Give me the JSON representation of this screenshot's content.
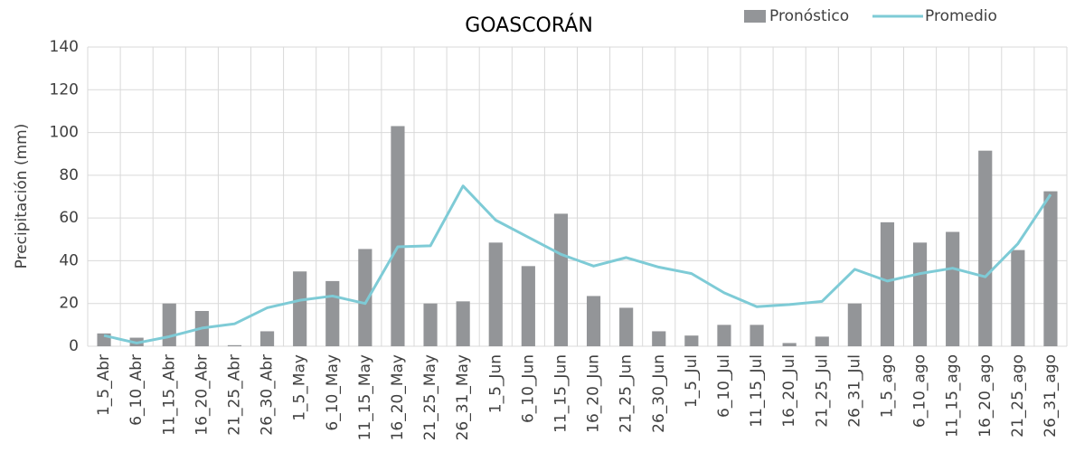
{
  "chart_data": {
    "type": "bar_line",
    "title": "GOASCORÁN",
    "y_label": "Precipitación (mm)",
    "categories": [
      "1_5_Abr",
      "6_10_Abr",
      "11_15_Abr",
      "16_20_Abr",
      "21_25_Abr",
      "26_30_Abr",
      "1_5_May",
      "6_10_May",
      "11_15_May",
      "16_20_May",
      "21_25_May",
      "26_31_May",
      "1_5_Jun",
      "6_10_Jun",
      "11_15_Jun",
      "16_20_Jun",
      "21_25_Jun",
      "26_30_Jun",
      "1_5_Jul",
      "6_10_Jul",
      "11_15_Jul",
      "16_20_Jul",
      "21_25_Jul",
      "26_31_Jul",
      "1_5_ago",
      "6_10_ago",
      "11_15_ago",
      "16_20_ago",
      "21_25_ago",
      "26_31_ago"
    ],
    "series": [
      {
        "name": "Pronóstico",
        "type": "bar",
        "color": "#939598",
        "values": [
          6,
          4,
          20,
          16.5,
          0.5,
          7,
          35,
          30.5,
          45.5,
          103,
          20,
          21,
          48.5,
          37.5,
          62,
          23.5,
          18,
          7,
          5,
          10,
          10,
          1.5,
          4.5,
          20,
          58,
          48.5,
          53.5,
          91.5,
          45,
          72.5
        ]
      },
      {
        "name": "Promedio",
        "type": "line",
        "color": "#7ecbd6",
        "values": [
          5,
          1.5,
          4.5,
          8.5,
          10.5,
          18,
          21.5,
          23.5,
          20,
          46.5,
          47,
          75,
          59,
          51,
          43,
          37.5,
          41.5,
          37,
          34,
          25,
          18.5,
          19.5,
          21,
          36,
          30.5,
          34,
          36.5,
          32.5,
          48,
          71
        ]
      }
    ],
    "ylim": [
      0,
      140
    ],
    "yticks": [
      0,
      20,
      40,
      60,
      80,
      100,
      120,
      140
    ],
    "grid": true,
    "legend": "top-right"
  }
}
